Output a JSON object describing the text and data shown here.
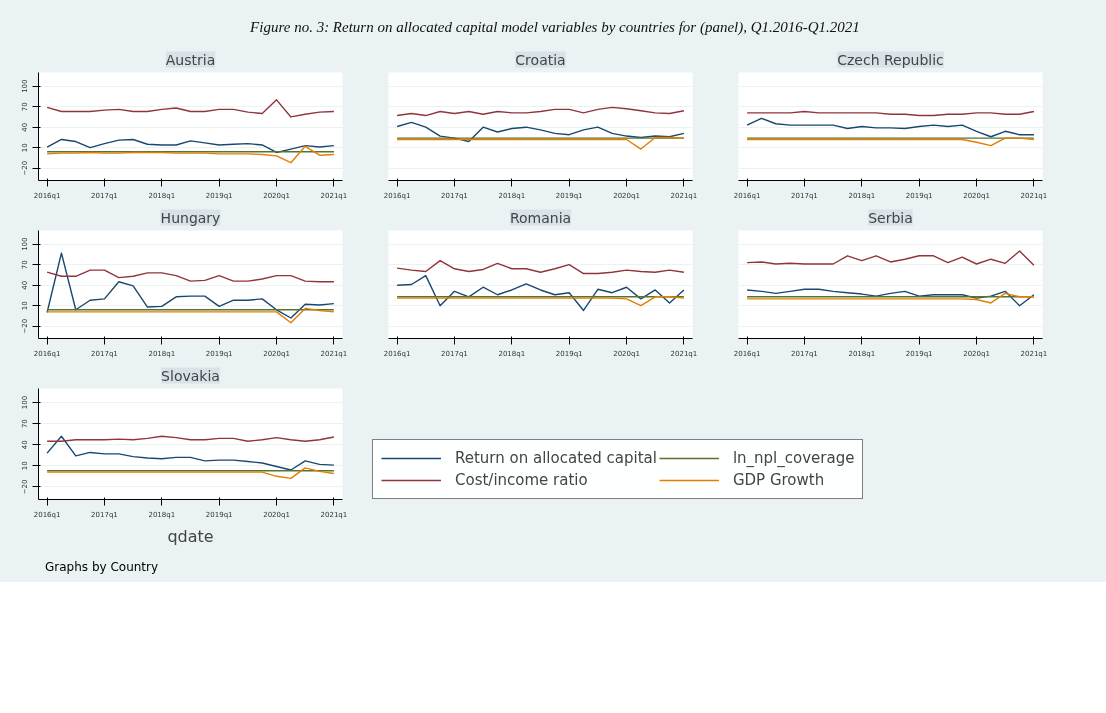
{
  "chart_data": [
    {
      "type": "line",
      "title": "Austria",
      "annotations": [
        "Figure no. 3: Return on allocated capital model variables by countries for (panel), Q1.2016-Q1.2021"
      ],
      "categories": [
        "2016q1",
        null,
        null,
        null,
        "2017q1",
        null,
        null,
        null,
        "2018q1",
        null,
        null,
        null,
        "2019q1",
        null,
        null,
        null,
        "2020q1",
        null,
        null,
        null,
        "2021q1"
      ],
      "ylim": [
        -38,
        120
      ],
      "yticks": [
        -20,
        10,
        40,
        70,
        100
      ],
      "grid": "y",
      "series": [
        {
          "color": "#1a476f",
          "values": [
            11,
            22,
            19,
            10,
            16,
            21,
            22,
            15,
            14,
            14,
            20,
            17,
            14,
            15,
            16,
            14,
            3,
            8,
            13,
            11,
            13
          ]
        },
        {
          "color": "#90353b",
          "values": [
            69,
            63,
            63,
            63,
            65,
            66,
            63,
            63,
            66,
            68,
            63,
            63,
            66,
            66,
            62,
            60,
            80,
            55,
            59,
            62,
            63
          ]
        },
        {
          "color": "#55752f",
          "values": [
            4,
            4,
            4,
            4,
            4,
            4,
            4,
            4,
            4,
            4,
            4,
            4,
            4,
            4,
            4,
            4,
            4,
            4,
            4,
            4,
            4
          ]
        },
        {
          "color": "#e37e00",
          "values": [
            1,
            2,
            2,
            3,
            2,
            2,
            3,
            3,
            3,
            2,
            2,
            2,
            1,
            1,
            1,
            0,
            -2,
            -12,
            12,
            -1,
            0
          ]
        }
      ]
    },
    {
      "type": "line",
      "title": "Croatia",
      "tick_labels": "x",
      "categories": [
        "2016q1",
        null,
        null,
        null,
        "2017q1",
        null,
        null,
        null,
        "2018q1",
        null,
        null,
        null,
        "2019q1",
        null,
        null,
        null,
        "2020q1",
        null,
        null,
        null,
        "2021q1"
      ],
      "ylim": [
        -38,
        120
      ],
      "yticks": [
        -20,
        10,
        40,
        70,
        100
      ],
      "grid": "y",
      "series": [
        {
          "color": "#1a476f",
          "values": [
            41,
            47,
            40,
            27,
            24,
            19,
            40,
            33,
            38,
            40,
            36,
            31,
            29,
            36,
            40,
            31,
            27,
            25,
            27,
            26,
            31
          ]
        },
        {
          "color": "#90353b",
          "values": [
            57,
            60,
            57,
            63,
            60,
            63,
            59,
            63,
            61,
            61,
            63,
            66,
            66,
            61,
            66,
            69,
            67,
            64,
            61,
            60,
            64
          ]
        },
        {
          "color": "#55752f",
          "values": [
            24,
            24,
            24,
            24,
            24,
            24,
            24,
            24,
            24,
            24,
            24,
            24,
            24,
            24,
            24,
            24,
            24,
            24,
            24,
            24,
            24
          ]
        },
        {
          "color": "#e37e00",
          "values": [
            22,
            22,
            22,
            22,
            22,
            22,
            22,
            22,
            22,
            22,
            22,
            22,
            22,
            22,
            22,
            22,
            22,
            8,
            25,
            25,
            24
          ]
        }
      ]
    },
    {
      "type": "line",
      "title": "Czech Republic",
      "tick_labels": "x",
      "categories": [
        "2016q1",
        null,
        null,
        null,
        "2017q1",
        null,
        null,
        null,
        "2018q1",
        null,
        null,
        null,
        "2019q1",
        null,
        null,
        null,
        "2020q1",
        null,
        null,
        null,
        "2021q1"
      ],
      "ylim": [
        -38,
        120
      ],
      "yticks": [
        -20,
        10,
        40,
        70,
        100
      ],
      "grid": "y",
      "series": [
        {
          "color": "#1a476f",
          "values": [
            43,
            53,
            45,
            43,
            43,
            43,
            43,
            38,
            41,
            39,
            39,
            38,
            41,
            43,
            41,
            43,
            34,
            26,
            34,
            29,
            29
          ]
        },
        {
          "color": "#90353b",
          "values": [
            61,
            61,
            61,
            61,
            63,
            61,
            61,
            61,
            61,
            61,
            59,
            59,
            57,
            57,
            59,
            59,
            61,
            61,
            59,
            59,
            63
          ]
        },
        {
          "color": "#55752f",
          "values": [
            24,
            24,
            24,
            24,
            24,
            24,
            24,
            24,
            24,
            24,
            24,
            24,
            24,
            24,
            24,
            24,
            24,
            24,
            24,
            24,
            24
          ]
        },
        {
          "color": "#e37e00",
          "values": [
            22,
            22,
            22,
            22,
            22,
            22,
            22,
            22,
            22,
            22,
            22,
            22,
            22,
            22,
            22,
            22,
            18,
            13,
            24,
            24,
            22
          ]
        }
      ]
    },
    {
      "type": "line",
      "title": "Hungary",
      "categories": [
        "2016q1",
        null,
        null,
        null,
        "2017q1",
        null,
        null,
        null,
        "2018q1",
        null,
        null,
        null,
        "2019q1",
        null,
        null,
        null,
        "2020q1",
        null,
        null,
        null,
        "2021q1"
      ],
      "ylim": [
        -38,
        120
      ],
      "yticks": [
        -20,
        10,
        40,
        70,
        100
      ],
      "grid": "y",
      "series": [
        {
          "color": "#1a476f",
          "values": [
            0,
            87,
            4,
            18,
            20,
            45,
            39,
            8,
            9,
            23,
            24,
            24,
            9,
            18,
            18,
            20,
            4,
            -8,
            12,
            11,
            13
          ]
        },
        {
          "color": "#90353b",
          "values": [
            59,
            53,
            53,
            62,
            62,
            51,
            53,
            58,
            58,
            54,
            46,
            47,
            54,
            46,
            46,
            49,
            54,
            54,
            46,
            45,
            45
          ]
        },
        {
          "color": "#55752f",
          "values": [
            4,
            4,
            4,
            4,
            4,
            4,
            4,
            4,
            4,
            4,
            4,
            4,
            4,
            4,
            4,
            4,
            4,
            4,
            4,
            4,
            4
          ]
        },
        {
          "color": "#e37e00",
          "values": [
            1,
            1,
            1,
            1,
            1,
            1,
            1,
            1,
            1,
            1,
            1,
            1,
            1,
            1,
            1,
            1,
            1,
            -15,
            6,
            3,
            1
          ]
        }
      ]
    },
    {
      "type": "line",
      "title": "Romania",
      "tick_labels": "x",
      "categories": [
        "2016q1",
        null,
        null,
        null,
        "2017q1",
        null,
        null,
        null,
        "2018q1",
        null,
        null,
        null,
        "2019q1",
        null,
        null,
        null,
        "2020q1",
        null,
        null,
        null,
        "2021q1"
      ],
      "ylim": [
        -38,
        120
      ],
      "yticks": [
        -20,
        10,
        40,
        70,
        100
      ],
      "grid": "y",
      "series": [
        {
          "color": "#1a476f",
          "values": [
            40,
            41,
            54,
            10,
            31,
            23,
            37,
            26,
            33,
            42,
            33,
            26,
            29,
            3,
            34,
            29,
            37,
            20,
            33,
            14,
            33
          ]
        },
        {
          "color": "#90353b",
          "values": [
            65,
            62,
            60,
            76,
            64,
            60,
            63,
            72,
            64,
            64,
            59,
            64,
            70,
            57,
            57,
            59,
            62,
            60,
            59,
            62,
            59
          ]
        },
        {
          "color": "#55752f",
          "values": [
            23,
            23,
            23,
            23,
            23,
            23,
            23,
            23,
            23,
            23,
            23,
            23,
            23,
            23,
            23,
            23,
            23,
            23,
            23,
            23,
            23
          ]
        },
        {
          "color": "#e37e00",
          "values": [
            21,
            21,
            21,
            21,
            21,
            21,
            21,
            21,
            21,
            21,
            21,
            21,
            21,
            21,
            21,
            21,
            20,
            10,
            23,
            23,
            21
          ]
        }
      ]
    },
    {
      "type": "line",
      "title": "Serbia",
      "tick_labels": "x",
      "categories": [
        "2016q1",
        null,
        null,
        null,
        "2017q1",
        null,
        null,
        null,
        "2018q1",
        null,
        null,
        null,
        "2019q1",
        null,
        null,
        null,
        "2020q1",
        null,
        null,
        null,
        "2021q1"
      ],
      "ylim": [
        -38,
        120
      ],
      "yticks": [
        -20,
        10,
        40,
        70,
        100
      ],
      "grid": "y",
      "series": [
        {
          "color": "#1a476f",
          "values": [
            33,
            31,
            28,
            31,
            34,
            34,
            31,
            29,
            27,
            24,
            28,
            31,
            24,
            26,
            26,
            26,
            21,
            24,
            31,
            10,
            26
          ]
        },
        {
          "color": "#90353b",
          "values": [
            73,
            74,
            71,
            72,
            71,
            71,
            71,
            83,
            76,
            83,
            74,
            78,
            83,
            83,
            73,
            81,
            71,
            78,
            72,
            90,
            69
          ]
        },
        {
          "color": "#55752f",
          "values": [
            23,
            23,
            23,
            23,
            23,
            23,
            23,
            23,
            23,
            23,
            23,
            23,
            23,
            23,
            23,
            23,
            23,
            23,
            23,
            23,
            23
          ]
        },
        {
          "color": "#e37e00",
          "values": [
            20,
            20,
            20,
            20,
            20,
            20,
            20,
            20,
            20,
            20,
            20,
            20,
            20,
            20,
            20,
            20,
            19,
            14,
            28,
            23,
            23
          ]
        }
      ]
    },
    {
      "type": "line",
      "title": "Slovakia",
      "xlabel": "qdate",
      "legend": "bottom",
      "annotations": [
        "Graphs by Country"
      ],
      "categories": [
        "2016q1",
        null,
        null,
        null,
        "2017q1",
        null,
        null,
        null,
        "2018q1",
        null,
        null,
        null,
        "2019q1",
        null,
        null,
        null,
        "2020q1",
        null,
        null,
        null,
        "2021q1"
      ],
      "ylim": [
        -38,
        120
      ],
      "yticks": [
        -20,
        10,
        40,
        70,
        100
      ],
      "grid": "y",
      "series": [
        {
          "name": "Return on allocated capital",
          "color": "#1a476f",
          "values": [
            28,
            52,
            24,
            29,
            27,
            27,
            23,
            21,
            20,
            22,
            22,
            17,
            18,
            18,
            16,
            14,
            9,
            4,
            17,
            12,
            11
          ]
        },
        {
          "name": "Cost/income ratio",
          "color": "#90353b",
          "values": [
            45,
            45,
            47,
            47,
            47,
            48,
            47,
            49,
            52,
            50,
            47,
            47,
            49,
            49,
            45,
            47,
            50,
            47,
            45,
            47,
            51
          ]
        },
        {
          "name": "ln_npl_coverage",
          "color": "#55752f",
          "values": [
            3,
            3,
            3,
            3,
            3,
            3,
            3,
            3,
            3,
            3,
            3,
            3,
            3,
            3,
            3,
            3,
            3,
            3,
            3,
            3,
            3
          ]
        },
        {
          "name": "GDP Growth",
          "color": "#e37e00",
          "values": [
            1,
            1,
            1,
            1,
            1,
            1,
            1,
            1,
            1,
            1,
            1,
            1,
            1,
            1,
            1,
            1,
            -5,
            -8,
            7,
            2,
            -1
          ]
        }
      ]
    }
  ]
}
